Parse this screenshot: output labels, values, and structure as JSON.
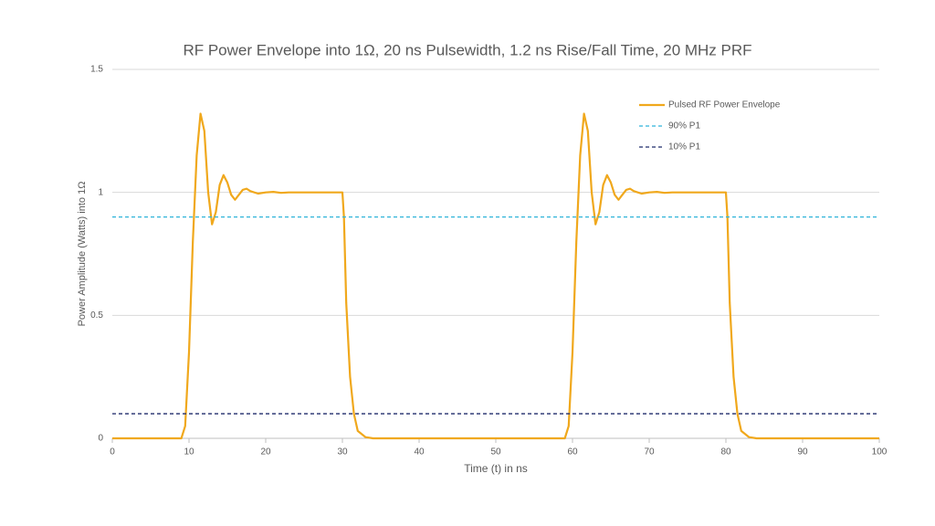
{
  "chart_data": {
    "type": "line",
    "title": "RF Power Envelope into 1Ω, 20 ns Pulsewidth, 1.2 ns Rise/Fall Time, 20 MHz PRF",
    "xlabel": "Time (t) in ns",
    "ylabel": "Power Amplitude (Watts) into 1Ω",
    "xlim": [
      0,
      100
    ],
    "xticks": [
      0,
      10,
      20,
      30,
      40,
      50,
      60,
      70,
      80,
      90,
      100
    ],
    "ylim": [
      0,
      1.5
    ],
    "yticks": [
      0,
      0.5,
      1,
      1.5
    ],
    "grid": true,
    "legend": "upper right",
    "series": [
      {
        "name": "Pulsed RF Power Envelope",
        "color": "#f0a81c",
        "dash": false,
        "x": [
          0,
          9,
          9.5,
          10,
          10.5,
          11,
          11.5,
          12,
          12.5,
          13,
          13.5,
          14,
          14.5,
          15,
          15.5,
          16,
          16.5,
          17,
          17.5,
          18,
          19,
          20,
          21,
          22,
          23,
          30,
          30.2,
          30.5,
          31,
          31.5,
          32,
          33,
          34,
          59,
          59.5,
          60,
          60.5,
          61,
          61.5,
          62,
          62.5,
          63,
          63.5,
          64,
          64.5,
          65,
          65.5,
          66,
          66.5,
          67,
          67.5,
          68,
          69,
          70,
          71,
          72,
          73,
          80,
          80.2,
          80.5,
          81,
          81.5,
          82,
          83,
          84,
          100
        ],
        "values": [
          0,
          0,
          0.05,
          0.35,
          0.8,
          1.15,
          1.32,
          1.25,
          1.0,
          0.87,
          0.92,
          1.03,
          1.07,
          1.04,
          0.99,
          0.97,
          0.99,
          1.01,
          1.015,
          1.005,
          0.995,
          1.0,
          1.002,
          0.998,
          1.0,
          1.0,
          0.9,
          0.55,
          0.25,
          0.1,
          0.03,
          0.005,
          0,
          0,
          0.05,
          0.35,
          0.8,
          1.15,
          1.32,
          1.25,
          1.0,
          0.87,
          0.92,
          1.03,
          1.07,
          1.04,
          0.99,
          0.97,
          0.99,
          1.01,
          1.015,
          1.005,
          0.995,
          1.0,
          1.002,
          0.998,
          1.0,
          1.0,
          0.9,
          0.55,
          0.25,
          0.1,
          0.03,
          0.005,
          0,
          0
        ]
      },
      {
        "name": "90% P1",
        "color": "#2fb4d9",
        "dash": true,
        "x": [
          0,
          100
        ],
        "values": [
          0.9,
          0.9
        ]
      },
      {
        "name": "10% P1",
        "color": "#1f2a6b",
        "dash": true,
        "x": [
          0,
          100
        ],
        "values": [
          0.1,
          0.1
        ]
      }
    ]
  }
}
